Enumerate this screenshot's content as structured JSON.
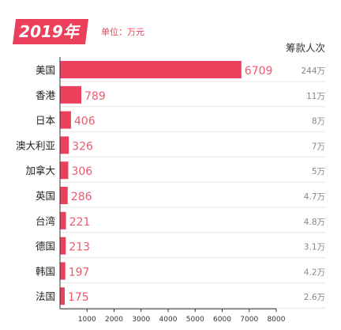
{
  "header": {
    "year_badge": "2019年",
    "unit_label": "单位：万元",
    "right_column_title": "筹款人次"
  },
  "colors": {
    "bar": "#ec3f5b",
    "value_label": "#ec5a6e",
    "badge_bg": "#ec3f5b",
    "axis": "#333333",
    "grid": "#e6e6e6",
    "muted_text": "#888888"
  },
  "chart_data": {
    "type": "bar",
    "orientation": "horizontal",
    "title": "2019年",
    "subtitle": "单位：万元",
    "categories": [
      "美国",
      "香港",
      "日本",
      "澳大利亚",
      "加拿大",
      "英国",
      "台湾",
      "德国",
      "韩国",
      "法国"
    ],
    "values": [
      6709,
      789,
      406,
      326,
      306,
      286,
      221,
      213,
      197,
      175
    ],
    "value_labels": [
      "6709",
      "789",
      "406",
      "326",
      "306",
      "286",
      "221",
      "213",
      "197",
      "175"
    ],
    "right_column_title": "筹款人次",
    "right_labels": [
      "244万",
      "11万",
      "8万",
      "7万",
      "5万",
      "4.7万",
      "4.8万",
      "3.1万",
      "4.2万",
      "2.6万"
    ],
    "x_ticks": [
      1000,
      2000,
      3000,
      4000,
      5000,
      6000,
      7000,
      8000
    ],
    "xlim": [
      0,
      8000
    ],
    "grid": true,
    "legend": "none"
  }
}
